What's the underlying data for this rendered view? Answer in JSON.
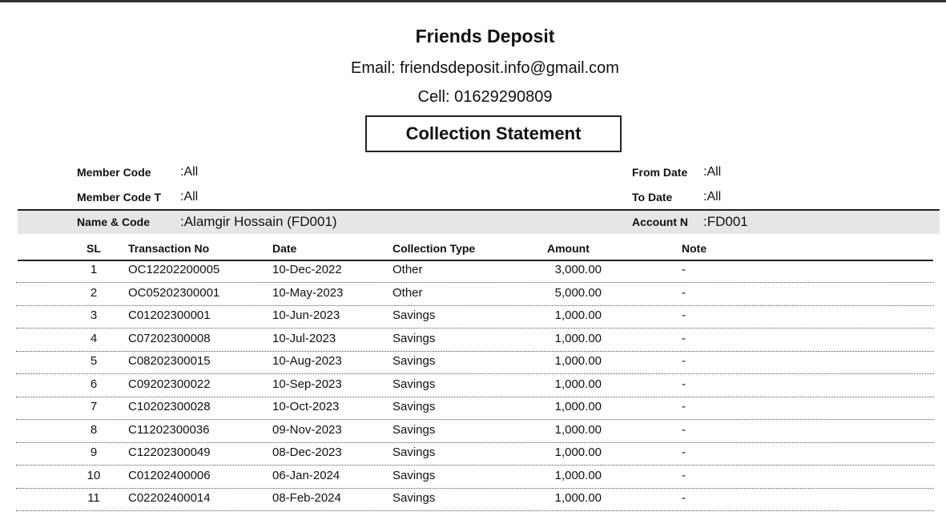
{
  "header": {
    "org_name": "Friends Deposit",
    "email": "Email: friendsdeposit.info@gmail.com",
    "cell": "Cell: 01629290809",
    "report_title": "Collection Statement"
  },
  "filters": {
    "member_code_label": "Member Code",
    "member_code_value": ":All",
    "member_code_to_label": "Member Code T",
    "member_code_to_value": ":All",
    "from_date_label": "From Date",
    "from_date_value": ":All",
    "to_date_label": "To Date",
    "to_date_value": ":All"
  },
  "member": {
    "name_label": "Name & Code",
    "name_value": ":Alamgir Hossain (FD001)",
    "account_label": "Account N",
    "account_value": ":FD001"
  },
  "table": {
    "columns": [
      "SL",
      "Transaction No",
      "Date",
      "Collection Type",
      "Amount",
      "Note"
    ],
    "rows": [
      [
        "1",
        "OC12202200005",
        "10-Dec-2022",
        "Other",
        "3,000.00",
        "-"
      ],
      [
        "2",
        "OC05202300001",
        "10-May-2023",
        "Other",
        "5,000.00",
        "-"
      ],
      [
        "3",
        "C01202300001",
        "10-Jun-2023",
        "Savings",
        "1,000.00",
        "-"
      ],
      [
        "4",
        "C07202300008",
        "10-Jul-2023",
        "Savings",
        "1,000.00",
        "-"
      ],
      [
        "5",
        "C08202300015",
        "10-Aug-2023",
        "Savings",
        "1,000.00",
        "-"
      ],
      [
        "6",
        "C09202300022",
        "10-Sep-2023",
        "Savings",
        "1,000.00",
        "-"
      ],
      [
        "7",
        "C10202300028",
        "10-Oct-2023",
        "Savings",
        "1,000.00",
        "-"
      ],
      [
        "8",
        "C11202300036",
        "09-Nov-2023",
        "Savings",
        "1,000.00",
        "-"
      ],
      [
        "9",
        "C12202300049",
        "08-Dec-2023",
        "Savings",
        "1,000.00",
        "-"
      ],
      [
        "10",
        "C01202400006",
        "06-Jan-2024",
        "Savings",
        "1,000.00",
        "-"
      ],
      [
        "11",
        "C02202400014",
        "08-Feb-2024",
        "Savings",
        "1,000.00",
        "-"
      ]
    ]
  }
}
